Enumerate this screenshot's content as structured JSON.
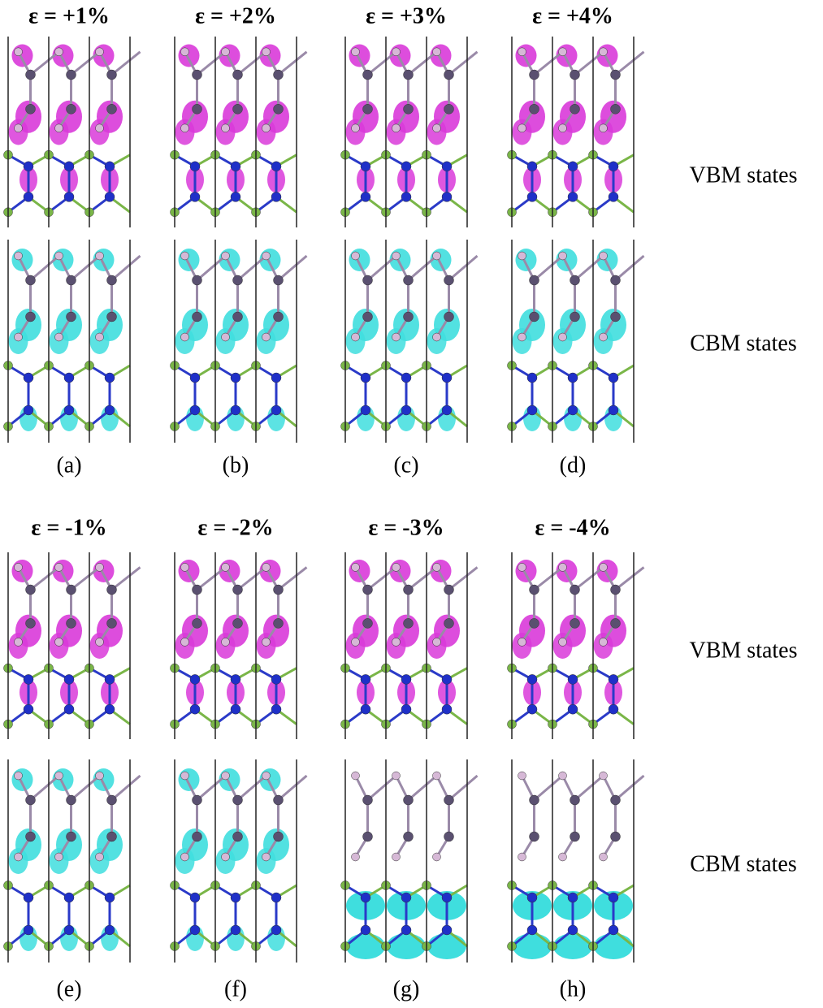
{
  "groups": [
    {
      "panels": [
        {
          "strain": "ε = +1%",
          "caption": "(a)"
        },
        {
          "strain": "ε = +2%",
          "caption": "(b)"
        },
        {
          "strain": "ε = +3%",
          "caption": "(c)"
        },
        {
          "strain": "ε = +4%",
          "caption": "(d)"
        }
      ],
      "row_labels": [
        "VBM states",
        "CBM states"
      ]
    },
    {
      "panels": [
        {
          "strain": "ε = -1%",
          "caption": "(e)"
        },
        {
          "strain": "ε = -2%",
          "caption": "(f)"
        },
        {
          "strain": "ε = -3%",
          "caption": "(g)"
        },
        {
          "strain": "ε = -4%",
          "caption": "(h)"
        }
      ],
      "row_labels": [
        "VBM states",
        "CBM states"
      ]
    }
  ]
}
